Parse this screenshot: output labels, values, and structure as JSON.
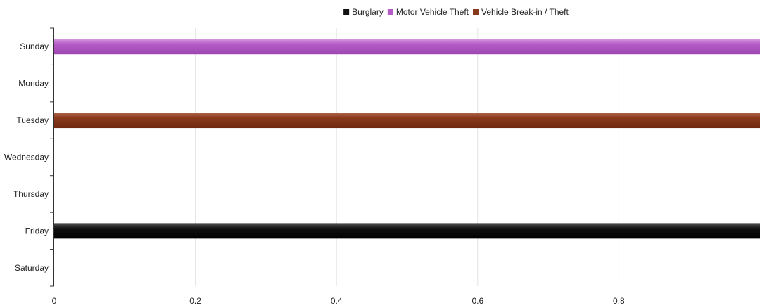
{
  "chart_data": {
    "type": "bar",
    "orientation": "horizontal",
    "categories": [
      "Sunday",
      "Monday",
      "Tuesday",
      "Wednesday",
      "Thursday",
      "Friday",
      "Saturday"
    ],
    "series": [
      {
        "name": "Burglary",
        "color": "#111111",
        "values": [
          0,
          0,
          0,
          0,
          0,
          1,
          0
        ]
      },
      {
        "name": "Motor Vehicle Theft",
        "color": "#b55bc6",
        "values": [
          1,
          0,
          0,
          0,
          0,
          0,
          0
        ]
      },
      {
        "name": "Vehicle Break-in / Theft",
        "color": "#8a3a1c",
        "values": [
          0,
          0,
          1,
          0,
          0,
          0,
          0
        ]
      }
    ],
    "xlim": [
      0,
      1
    ],
    "x_ticks": [
      0,
      0.2,
      0.4,
      0.6,
      0.8
    ],
    "x_tick_labels": [
      "0",
      "0.2",
      "0.4",
      "0.6",
      "0.8"
    ],
    "grid": "vertical",
    "legend_position": "top"
  }
}
